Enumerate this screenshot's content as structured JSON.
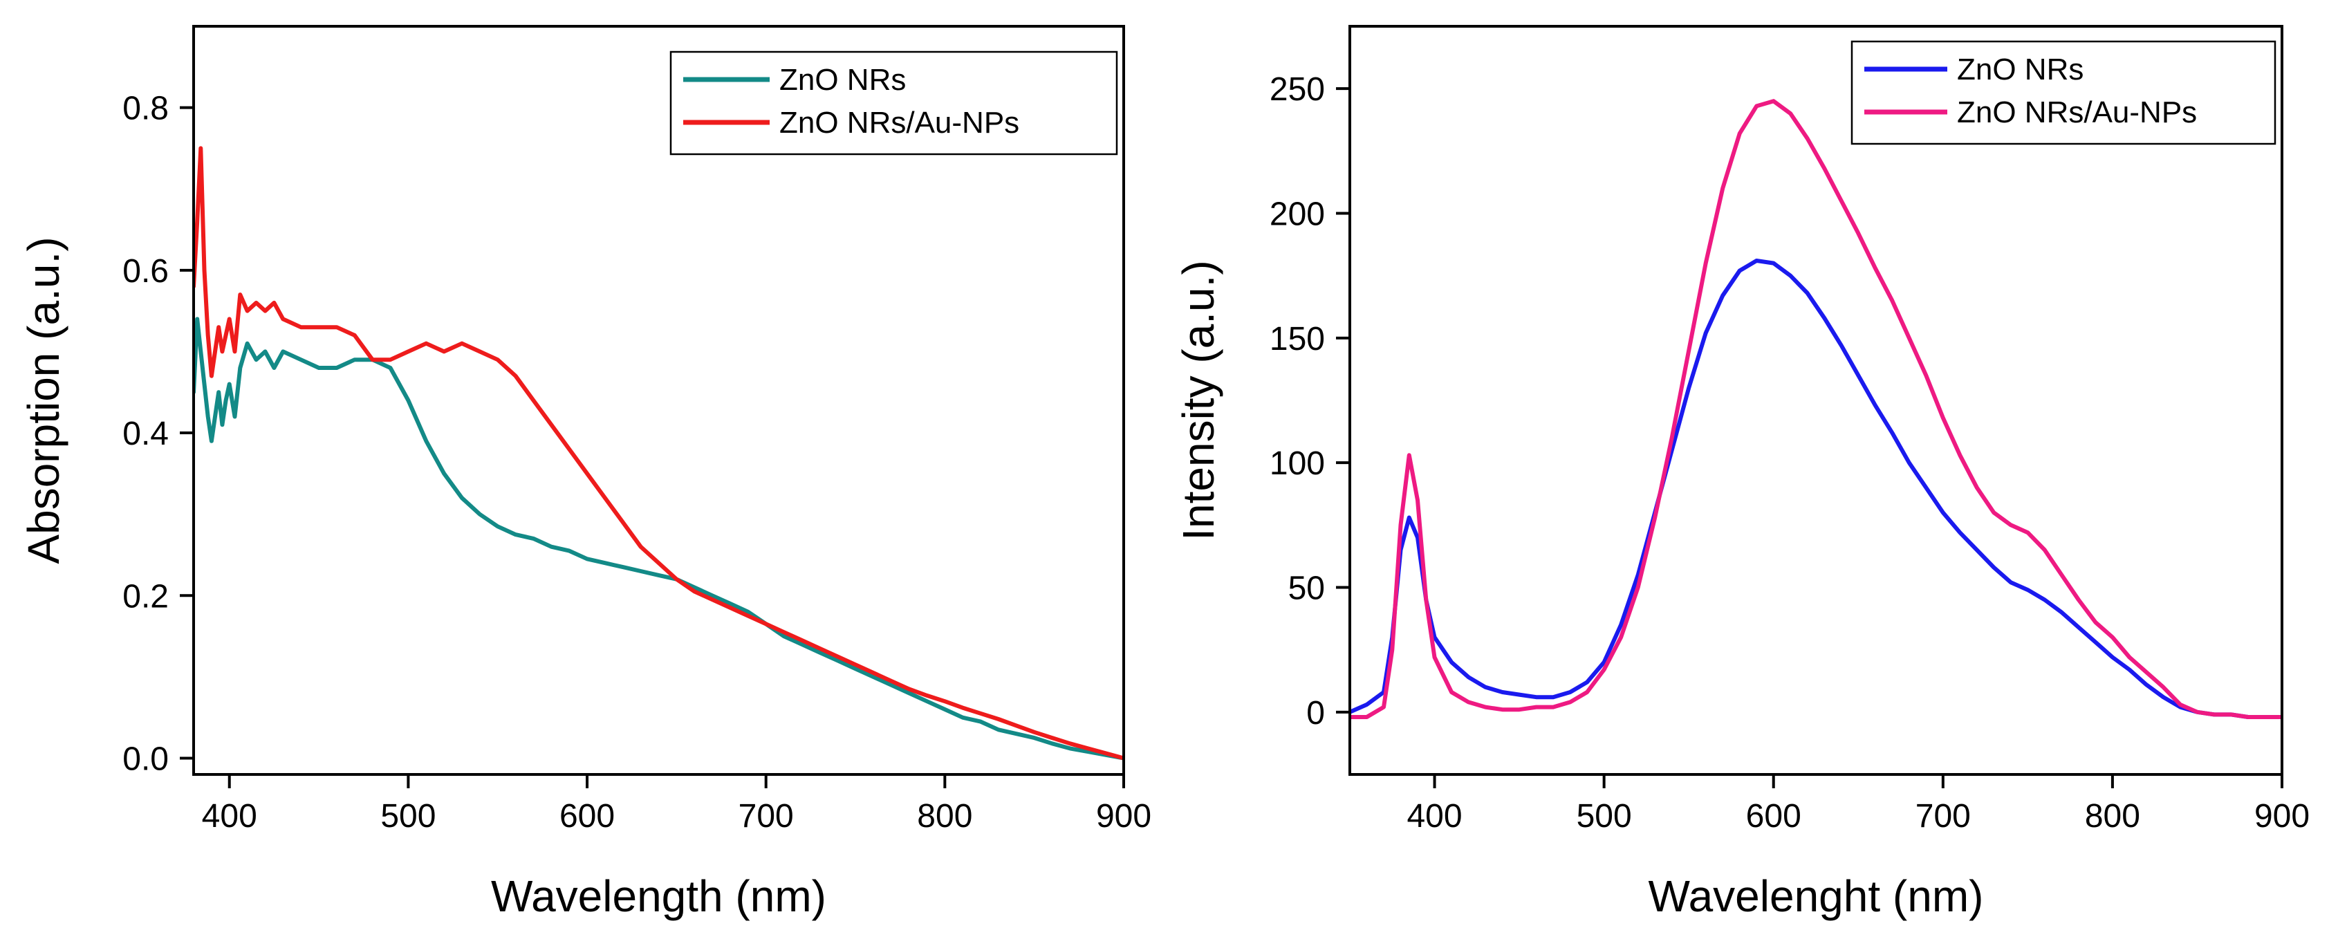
{
  "chart_data": [
    {
      "type": "line",
      "xlabel": "Wavelength (nm)",
      "ylabel": "Absorption (a.u.)",
      "xlim": [
        380,
        900
      ],
      "ylim": [
        -0.02,
        0.9
      ],
      "xticks": [
        400,
        500,
        600,
        700,
        800,
        900
      ],
      "yticks": [
        0.0,
        0.2,
        0.4,
        0.6,
        0.8
      ],
      "ytick_labels": [
        "0.0",
        "0.2",
        "0.4",
        "0.6",
        "0.8"
      ],
      "legend_position": "top-right",
      "grid": false,
      "series": [
        {
          "name": "ZnO NRs",
          "color": "#138a87",
          "x": [
            380,
            382,
            384,
            386,
            388,
            390,
            392,
            394,
            396,
            398,
            400,
            403,
            406,
            410,
            415,
            420,
            425,
            430,
            440,
            450,
            460,
            470,
            480,
            490,
            500,
            510,
            520,
            530,
            540,
            550,
            560,
            570,
            580,
            590,
            600,
            610,
            620,
            630,
            640,
            650,
            660,
            670,
            680,
            690,
            700,
            710,
            720,
            730,
            740,
            750,
            760,
            770,
            780,
            790,
            800,
            810,
            820,
            830,
            840,
            850,
            860,
            870,
            880,
            890,
            900
          ],
          "y": [
            0.45,
            0.54,
            0.5,
            0.46,
            0.42,
            0.39,
            0.42,
            0.45,
            0.41,
            0.44,
            0.46,
            0.42,
            0.48,
            0.51,
            0.49,
            0.5,
            0.48,
            0.5,
            0.49,
            0.48,
            0.48,
            0.49,
            0.49,
            0.48,
            0.44,
            0.39,
            0.35,
            0.32,
            0.3,
            0.285,
            0.275,
            0.27,
            0.26,
            0.255,
            0.245,
            0.24,
            0.235,
            0.23,
            0.225,
            0.22,
            0.21,
            0.2,
            0.19,
            0.18,
            0.165,
            0.15,
            0.14,
            0.13,
            0.12,
            0.11,
            0.1,
            0.09,
            0.08,
            0.07,
            0.06,
            0.05,
            0.045,
            0.035,
            0.03,
            0.025,
            0.018,
            0.012,
            0.008,
            0.004,
            0.0
          ]
        },
        {
          "name": "ZnO NRs/Au-NPs",
          "color": "#ee1c1c",
          "x": [
            380,
            382,
            384,
            386,
            388,
            390,
            392,
            394,
            396,
            400,
            403,
            406,
            410,
            415,
            420,
            425,
            430,
            440,
            450,
            460,
            470,
            480,
            490,
            500,
            510,
            520,
            530,
            540,
            550,
            560,
            570,
            580,
            590,
            600,
            610,
            620,
            630,
            640,
            650,
            660,
            670,
            680,
            690,
            700,
            710,
            720,
            730,
            740,
            750,
            760,
            770,
            780,
            790,
            800,
            810,
            820,
            830,
            840,
            850,
            860,
            870,
            880,
            890,
            900
          ],
          "y": [
            0.58,
            0.66,
            0.75,
            0.6,
            0.52,
            0.47,
            0.5,
            0.53,
            0.5,
            0.54,
            0.5,
            0.57,
            0.55,
            0.56,
            0.55,
            0.56,
            0.54,
            0.53,
            0.53,
            0.53,
            0.52,
            0.49,
            0.49,
            0.5,
            0.51,
            0.5,
            0.51,
            0.5,
            0.49,
            0.47,
            0.44,
            0.41,
            0.38,
            0.35,
            0.32,
            0.29,
            0.26,
            0.24,
            0.22,
            0.205,
            0.195,
            0.185,
            0.175,
            0.165,
            0.155,
            0.145,
            0.135,
            0.125,
            0.115,
            0.105,
            0.095,
            0.085,
            0.077,
            0.07,
            0.062,
            0.055,
            0.048,
            0.04,
            0.032,
            0.025,
            0.018,
            0.012,
            0.006,
            0.0
          ]
        }
      ]
    },
    {
      "type": "line",
      "xlabel": "Wavelenght (nm)",
      "ylabel": "Intensity (a.u.)",
      "xlim": [
        350,
        900
      ],
      "ylim": [
        -25,
        275
      ],
      "xticks": [
        400,
        500,
        600,
        700,
        800,
        900
      ],
      "yticks": [
        0,
        50,
        100,
        150,
        200,
        250
      ],
      "ytick_labels": [
        "0",
        "50",
        "100",
        "150",
        "200",
        "250"
      ],
      "legend_position": "top-right",
      "grid": false,
      "series": [
        {
          "name": "ZnO NRs",
          "color": "#1a1aee",
          "x": [
            350,
            360,
            370,
            375,
            380,
            385,
            390,
            395,
            400,
            410,
            420,
            430,
            440,
            450,
            460,
            470,
            480,
            490,
            500,
            510,
            520,
            530,
            540,
            550,
            560,
            570,
            580,
            590,
            600,
            610,
            620,
            630,
            640,
            650,
            660,
            670,
            680,
            690,
            700,
            710,
            720,
            730,
            740,
            750,
            760,
            770,
            780,
            790,
            800,
            810,
            820,
            830,
            840,
            850,
            860,
            870,
            880,
            890,
            900
          ],
          "y": [
            0,
            3,
            8,
            30,
            65,
            78,
            70,
            45,
            30,
            20,
            14,
            10,
            8,
            7,
            6,
            6,
            8,
            12,
            20,
            35,
            55,
            80,
            105,
            130,
            152,
            167,
            177,
            181,
            180,
            175,
            168,
            158,
            147,
            135,
            123,
            112,
            100,
            90,
            80,
            72,
            65,
            58,
            52,
            49,
            45,
            40,
            34,
            28,
            22,
            17,
            11,
            6,
            2,
            0,
            -1,
            -1,
            -2,
            -2,
            -2
          ]
        },
        {
          "name": "ZnO NRs/Au-NPs",
          "color": "#ee1a82",
          "x": [
            350,
            360,
            370,
            375,
            380,
            385,
            390,
            395,
            400,
            410,
            420,
            430,
            440,
            450,
            460,
            470,
            480,
            490,
            500,
            510,
            520,
            530,
            540,
            550,
            560,
            570,
            580,
            590,
            600,
            610,
            620,
            630,
            640,
            650,
            660,
            670,
            680,
            690,
            700,
            710,
            720,
            730,
            740,
            750,
            760,
            770,
            780,
            790,
            800,
            810,
            820,
            830,
            840,
            850,
            860,
            870,
            880,
            890,
            900
          ],
          "y": [
            -2,
            -2,
            2,
            25,
            75,
            103,
            85,
            45,
            22,
            8,
            4,
            2,
            1,
            1,
            2,
            2,
            4,
            8,
            17,
            30,
            50,
            78,
            110,
            145,
            180,
            210,
            232,
            243,
            245,
            240,
            230,
            218,
            205,
            192,
            178,
            165,
            150,
            135,
            118,
            103,
            90,
            80,
            75,
            72,
            65,
            55,
            45,
            36,
            30,
            22,
            16,
            10,
            3,
            0,
            -1,
            -1,
            -2,
            -2,
            -2
          ]
        }
      ]
    }
  ]
}
